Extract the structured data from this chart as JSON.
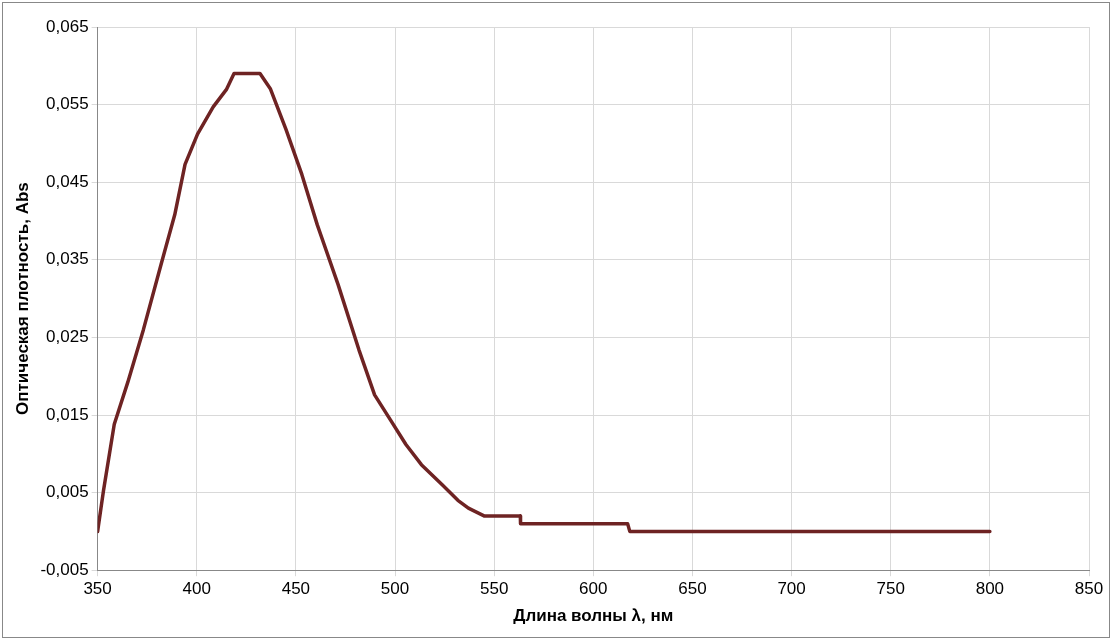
{
  "chart_data": {
    "type": "line",
    "xlabel": "Длина волны λ, нм",
    "ylabel": "Оптическая плотность, Abs",
    "x": [
      350,
      353,
      358.4,
      365.2,
      373.1,
      382,
      388.9,
      394.1,
      400.4,
      408.3,
      415.1,
      418.8,
      431.9,
      437.2,
      445,
      453,
      460.8,
      471.3,
      481.8,
      489.7,
      497.6,
      505.5,
      513.3,
      523.8,
      531.7,
      537,
      544.9,
      563.2,
      563.3,
      617.3,
      618.4,
      800
    ],
    "series": [
      {
        "color": "#6e2323",
        "values": [
          0,
          0.0053,
          0.0138,
          0.0192,
          0.026,
          0.0344,
          0.0408,
          0.0473,
          0.0512,
          0.0547,
          0.057,
          0.059,
          0.059,
          0.057,
          0.0518,
          0.046,
          0.0395,
          0.0318,
          0.0234,
          0.0176,
          0.0144,
          0.0112,
          0.0086,
          0.006,
          0.004,
          0.003,
          0.002,
          0.002,
          0.001,
          0.001,
          0,
          0
        ]
      }
    ],
    "xlim": [
      350,
      850
    ],
    "xticks": [
      350,
      400,
      450,
      500,
      550,
      600,
      650,
      700,
      750,
      800,
      850
    ],
    "ylim": [
      -0.005,
      0.065
    ],
    "yticks": [
      {
        "value": -0.005,
        "label": "-0,005"
      },
      {
        "value": 0.005,
        "label": "0,005"
      },
      {
        "value": 0.015,
        "label": "0,015"
      },
      {
        "value": 0.025,
        "label": "0,025"
      },
      {
        "value": 0.035,
        "label": "0,035"
      },
      {
        "value": 0.045,
        "label": "0,045"
      },
      {
        "value": 0.055,
        "label": "0,055"
      },
      {
        "value": 0.065,
        "label": "0,065"
      }
    ],
    "grid": true,
    "legend": false,
    "marker": "none",
    "line_style": "solid"
  }
}
